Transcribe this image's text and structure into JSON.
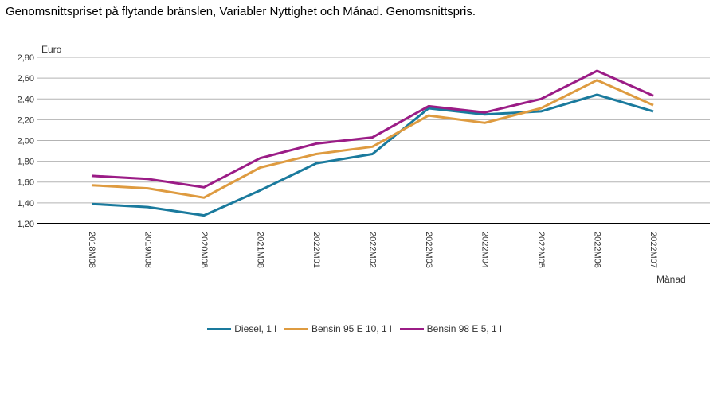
{
  "title": "Genomsnittspriset på flytande bränslen, Variabler Nyttighet och Månad. Genomsnittspris.",
  "chart_data": {
    "type": "line",
    "title": "Genomsnittspriset på flytande bränslen, Variabler Nyttighet och Månad. Genomsnittspris.",
    "y_axis_title": "Euro",
    "x_axis_title": "Månad",
    "categories": [
      "2018M08",
      "2019M08",
      "2020M08",
      "2021M08",
      "2022M01",
      "2022M02",
      "2022M03",
      "2022M04",
      "2022M05",
      "2022M06",
      "2022M07"
    ],
    "series": [
      {
        "name": "Diesel, 1 l",
        "color": "#1a7a9d",
        "values": [
          1.39,
          1.36,
          1.28,
          1.52,
          1.78,
          1.87,
          2.31,
          2.25,
          2.28,
          2.44,
          2.28
        ]
      },
      {
        "name": "Bensin 95 E 10, 1 l",
        "color": "#de9b40",
        "values": [
          1.57,
          1.54,
          1.45,
          1.74,
          1.87,
          1.94,
          2.24,
          2.17,
          2.31,
          2.58,
          2.34
        ]
      },
      {
        "name": "Bensin 98 E 5, 1 l",
        "color": "#9b1c86",
        "values": [
          1.66,
          1.63,
          1.55,
          1.83,
          1.97,
          2.03,
          2.33,
          2.27,
          2.4,
          2.67,
          2.43
        ]
      }
    ],
    "ylim": [
      1.2,
      2.8
    ],
    "y_tick_values": [
      1.2,
      1.4,
      1.6,
      1.8,
      2.0,
      2.2,
      2.4,
      2.6,
      2.8
    ],
    "y_tick_labels": [
      "1,20",
      "1,40",
      "1,60",
      "1,80",
      "2,00",
      "2,20",
      "2,40",
      "2,60",
      "2,80"
    ],
    "grid": true,
    "legend_position": "bottom",
    "colors": {
      "gridline": "#b3b3b3",
      "axis_line": "#000000",
      "tick_text": "#333333"
    }
  }
}
